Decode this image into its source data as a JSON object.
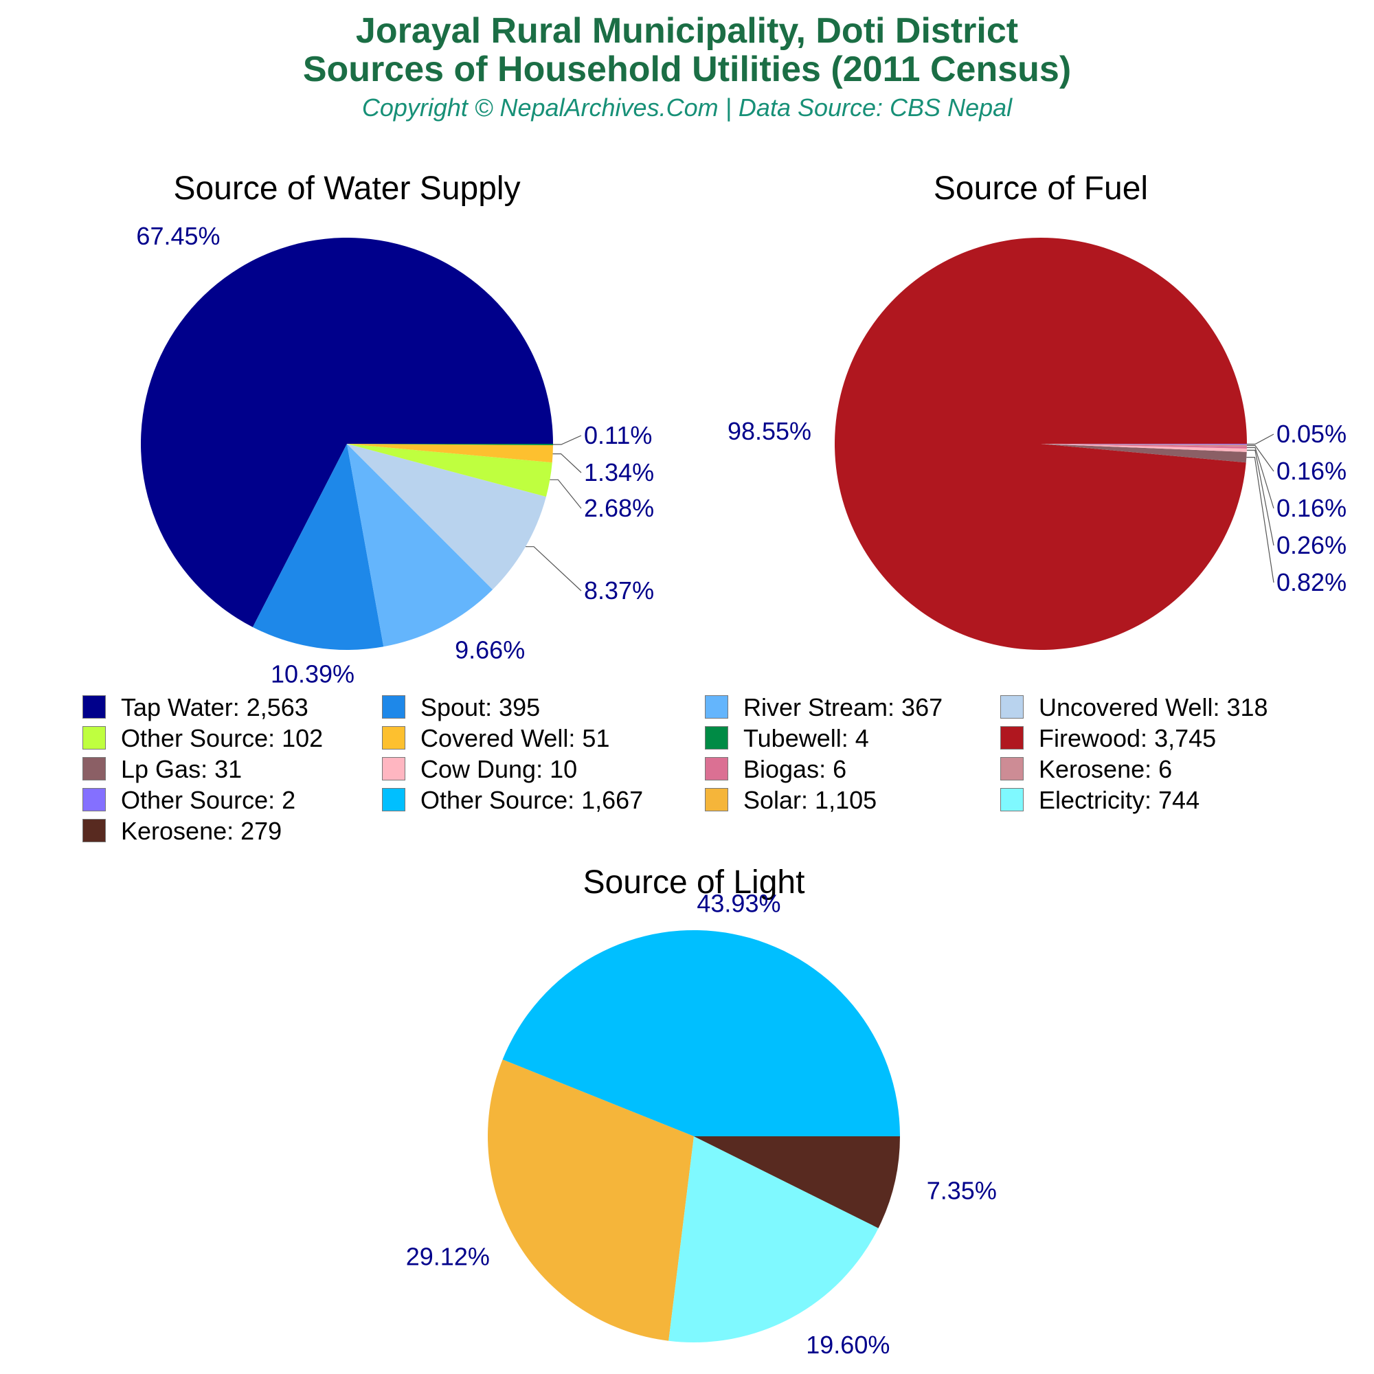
{
  "header": {
    "title_line1": "Jorayal Rural Municipality, Doti District",
    "title_line2": "Sources of Household Utilities (2011 Census)",
    "subtitle": "Copyright © NepalArchives.Com | Data Source: CBS Nepal"
  },
  "chart_data": [
    {
      "type": "pie",
      "title": "Source of Water Supply",
      "slices": [
        {
          "name": "Tap Water",
          "value": 2563,
          "label": "67.45%",
          "color": "#00008b"
        },
        {
          "name": "Spout",
          "value": 395,
          "label": "10.39%",
          "color": "#1e88e9"
        },
        {
          "name": "River Stream",
          "value": 367,
          "label": "9.66%",
          "color": "#64b5fc"
        },
        {
          "name": "Uncovered Well",
          "value": 318,
          "label": "8.37%",
          "color": "#b9d3ee"
        },
        {
          "name": "Other Source",
          "value": 102,
          "label": "2.68%",
          "color": "#bfff3f"
        },
        {
          "name": "Covered Well",
          "value": 51,
          "label": "1.34%",
          "color": "#fdc02f"
        },
        {
          "name": "Tubewell",
          "value": 4,
          "label": "0.11%",
          "color": "#008b45"
        }
      ]
    },
    {
      "type": "pie",
      "title": "Source of Fuel",
      "slices": [
        {
          "name": "Firewood",
          "value": 3745,
          "label": "98.55%",
          "color": "#b0171f"
        },
        {
          "name": "Lp Gas",
          "value": 31,
          "label": "0.82%",
          "color": "#8b5f65"
        },
        {
          "name": "Cow Dung",
          "value": 10,
          "label": "0.26%",
          "color": "#ffb6c1"
        },
        {
          "name": "Biogas",
          "value": 6,
          "label": "0.16%",
          "color": "#db7093"
        },
        {
          "name": "Kerosene",
          "value": 6,
          "label": "0.16%",
          "color": "#cd8c95"
        },
        {
          "name": "Other Source",
          "value": 2,
          "label": "0.05%",
          "color": "#8470ff"
        }
      ]
    },
    {
      "type": "pie",
      "title": "Source of Light",
      "slices": [
        {
          "name": "Other Source",
          "value": 1667,
          "label": "43.93%",
          "color": "#00bfff"
        },
        {
          "name": "Solar",
          "value": 1105,
          "label": "29.12%",
          "color": "#f5b53a"
        },
        {
          "name": "Electricity",
          "value": 744,
          "label": "19.60%",
          "color": "#7ff9ff"
        },
        {
          "name": "Kerosene",
          "value": 279,
          "label": "7.35%",
          "color": "#582a20"
        }
      ]
    }
  ],
  "legend": [
    {
      "label": "Tap Water: 2,563",
      "color": "#00008b"
    },
    {
      "label": "Spout: 395",
      "color": "#1e88e9"
    },
    {
      "label": "River Stream: 367",
      "color": "#64b5fc"
    },
    {
      "label": "Uncovered Well: 318",
      "color": "#b9d3ee"
    },
    {
      "label": "Other Source: 102",
      "color": "#bfff3f"
    },
    {
      "label": "Covered Well: 51",
      "color": "#fdc02f"
    },
    {
      "label": "Tubewell: 4",
      "color": "#008b45"
    },
    {
      "label": "Firewood: 3,745",
      "color": "#b0171f"
    },
    {
      "label": "Lp Gas: 31",
      "color": "#8b5f65"
    },
    {
      "label": "Cow Dung: 10",
      "color": "#ffb6c1"
    },
    {
      "label": "Biogas: 6",
      "color": "#db7093"
    },
    {
      "label": "Kerosene: 6",
      "color": "#cd8c95"
    },
    {
      "label": "Other Source: 2",
      "color": "#8470ff"
    },
    {
      "label": "Other Source: 1,667",
      "color": "#00bfff"
    },
    {
      "label": "Solar: 1,105",
      "color": "#f5b53a"
    },
    {
      "label": "Electricity: 744",
      "color": "#7ff9ff"
    },
    {
      "label": "Kerosene: 279",
      "color": "#582a20"
    }
  ],
  "colors": {
    "title": "#1b6e45",
    "subtitle": "#179077",
    "pct_label": "#00008b"
  }
}
